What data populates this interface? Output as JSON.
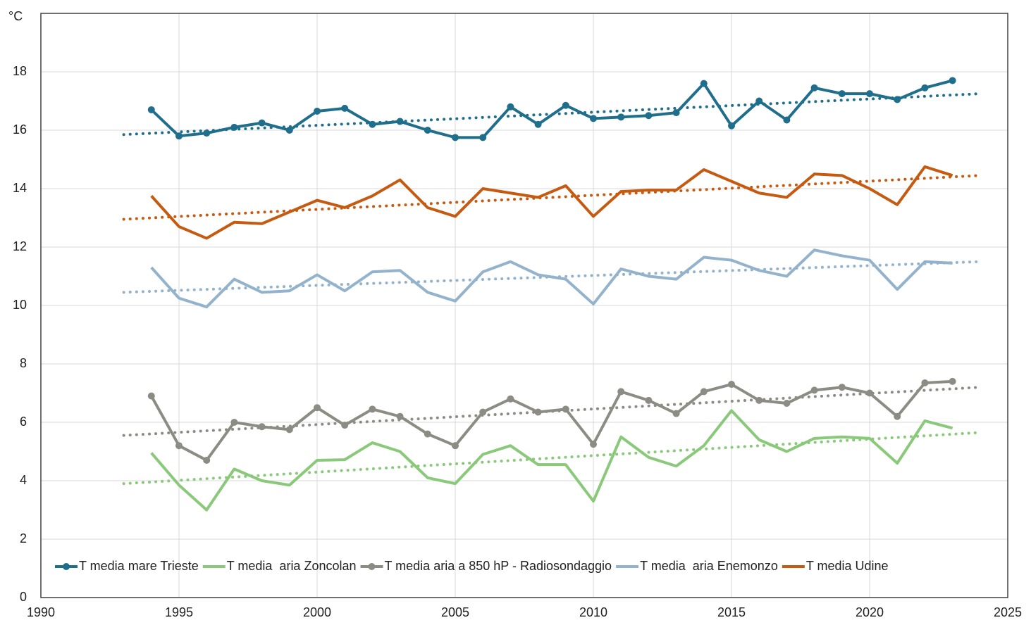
{
  "chart_data": {
    "type": "line",
    "y_label": "°C",
    "x": [
      1994,
      1995,
      1996,
      1997,
      1998,
      1999,
      2000,
      2001,
      2002,
      2003,
      2004,
      2005,
      2006,
      2007,
      2008,
      2009,
      2010,
      2011,
      2012,
      2013,
      2014,
      2015,
      2016,
      2017,
      2018,
      2019,
      2020,
      2021,
      2022,
      2023
    ],
    "xlim": [
      1990,
      2025
    ],
    "xticks": [
      1990,
      1995,
      2000,
      2005,
      2010,
      2015,
      2020,
      2025
    ],
    "ylim": [
      0,
      20
    ],
    "yticks": [
      0,
      2,
      4,
      6,
      8,
      10,
      12,
      14,
      16,
      18
    ],
    "grid": true,
    "legend": "bottom",
    "series": [
      {
        "name": "T media mare Trieste",
        "color": "#1f6e8c",
        "marker": true,
        "values": [
          16.7,
          15.8,
          15.9,
          16.1,
          16.25,
          16.0,
          16.65,
          16.75,
          16.2,
          16.3,
          16.0,
          15.75,
          15.75,
          16.8,
          16.2,
          16.85,
          16.4,
          16.45,
          16.5,
          16.6,
          17.6,
          16.15,
          17.0,
          16.35,
          17.45,
          17.25,
          17.25,
          17.05,
          17.45,
          17.7
        ],
        "trend": {
          "x": [
            1993,
            2024
          ],
          "values": [
            15.85,
            17.25
          ]
        }
      },
      {
        "name": "T media  aria Zoncolan",
        "color": "#8ac97a",
        "marker": false,
        "values": [
          4.95,
          3.85,
          3.0,
          4.4,
          4.0,
          3.85,
          4.7,
          4.72,
          5.3,
          5.0,
          4.1,
          3.9,
          4.9,
          5.2,
          4.55,
          4.55,
          3.3,
          5.5,
          4.8,
          4.5,
          5.2,
          6.4,
          5.4,
          5.0,
          5.45,
          5.5,
          5.45,
          4.6,
          6.05,
          5.8
        ],
        "trend": {
          "x": [
            1993,
            2024
          ],
          "values": [
            3.9,
            5.65
          ]
        }
      },
      {
        "name": "T media aria a 850 hP - Radiosondaggio",
        "color": "#8c8c84",
        "marker": true,
        "values": [
          6.9,
          5.2,
          4.7,
          6.0,
          5.85,
          5.75,
          6.5,
          5.9,
          6.45,
          6.2,
          5.6,
          5.2,
          6.35,
          6.8,
          6.35,
          6.45,
          5.25,
          7.05,
          6.75,
          6.3,
          7.05,
          7.3,
          6.75,
          6.65,
          7.1,
          7.2,
          7.0,
          6.2,
          7.35,
          7.4
        ],
        "trend": {
          "x": [
            1993,
            2024
          ],
          "values": [
            5.55,
            7.2
          ]
        }
      },
      {
        "name": "T media  aria Enemonzo",
        "color": "#93b3cc",
        "marker": false,
        "values": [
          11.3,
          10.25,
          9.95,
          10.9,
          10.45,
          10.5,
          11.05,
          10.5,
          11.15,
          11.2,
          10.45,
          10.15,
          11.15,
          11.5,
          11.05,
          10.9,
          10.05,
          11.25,
          11.0,
          10.9,
          11.65,
          11.55,
          11.2,
          11.0,
          11.9,
          11.7,
          11.55,
          10.55,
          11.5,
          11.45
        ],
        "trend": {
          "x": [
            1993,
            2024
          ],
          "values": [
            10.45,
            11.5
          ]
        }
      },
      {
        "name": "T media Udine",
        "color": "#c55a11",
        "marker": false,
        "values": [
          13.75,
          12.7,
          12.3,
          12.85,
          12.8,
          13.2,
          13.6,
          13.35,
          13.75,
          14.3,
          13.35,
          13.05,
          14.0,
          13.85,
          13.7,
          14.1,
          13.05,
          13.9,
          13.95,
          13.95,
          14.65,
          14.25,
          13.85,
          13.7,
          14.5,
          14.45,
          14.0,
          13.45,
          14.75,
          14.45
        ],
        "trend": {
          "x": [
            1993,
            2024
          ],
          "values": [
            12.95,
            14.45
          ]
        }
      }
    ]
  }
}
